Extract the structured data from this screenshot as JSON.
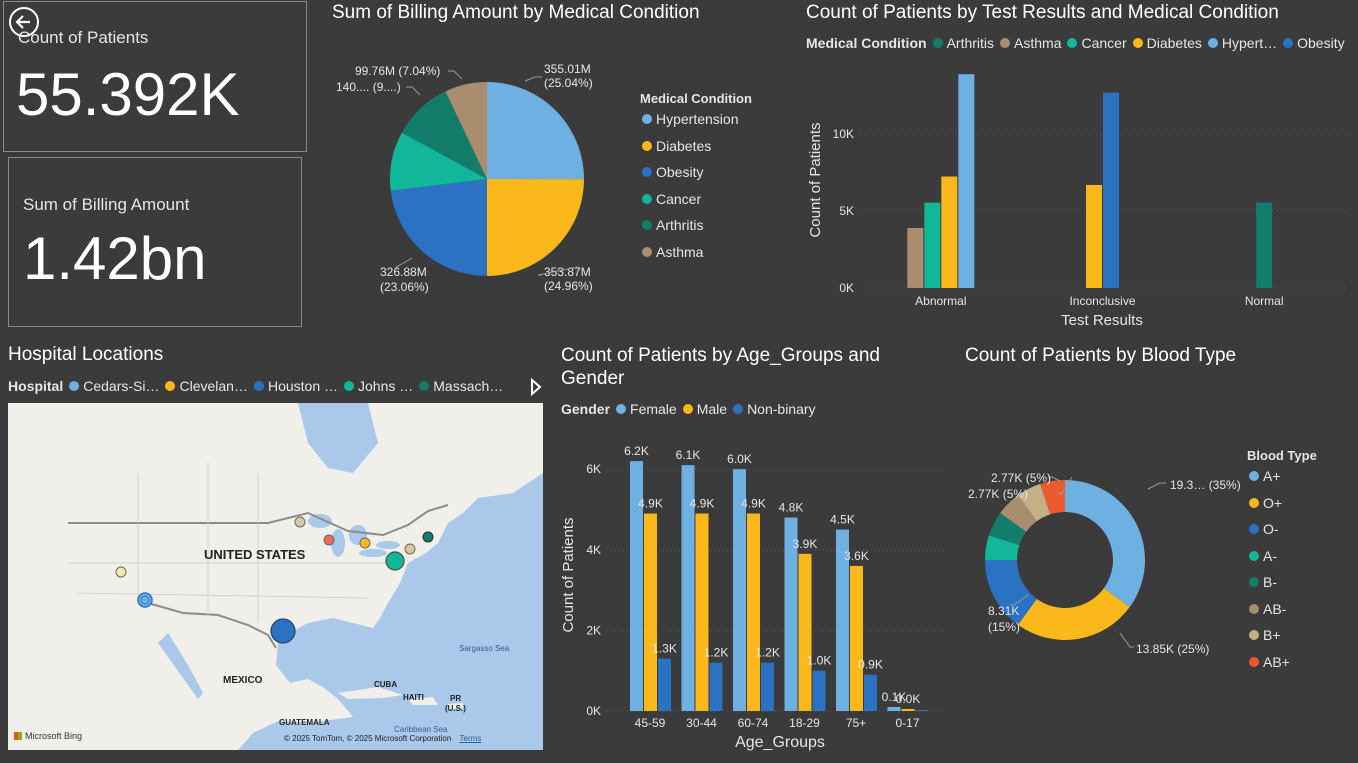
{
  "kpis": {
    "patients": {
      "label": "Count of Patients",
      "value": "55.392K"
    },
    "billing": {
      "label": "Sum of Billing Amount",
      "value": "1.42bn"
    }
  },
  "colors": {
    "hypertension": "#6fb0e3",
    "diabetes": "#fbb81b",
    "obesity": "#2b72c2",
    "cancer": "#12b79a",
    "arthritis": "#127d6a",
    "asthma": "#a98d6e",
    "ab_minus": "#a98d6e",
    "b_plus": "#c2b185",
    "ab_plus": "#e95a2c"
  },
  "billing_pie": {
    "title": "Sum of Billing Amount by Medical Condition",
    "legend_title": "Medical Condition",
    "labels": {
      "hypertension": "355.01M\n(25.04%)",
      "diabetes": "353.87M\n(24.96%)",
      "obesity": "326.88M\n(23.06%)",
      "asthma": "99.76M (7.04%)",
      "truncated": "140.... (9....)"
    }
  },
  "test_results": {
    "title": "Count of Patients by Test Results and Medical Condition",
    "legend_title": "Medical Condition",
    "legend": [
      "Arthritis",
      "Asthma",
      "Cancer",
      "Diabetes",
      "Hypert…",
      "Obesity"
    ],
    "ylabel": "Count of Patients",
    "xlabel": "Test Results"
  },
  "map": {
    "title": "Hospital Locations",
    "legend_title": "Hospital",
    "legend": [
      "Cedars-Si…",
      "Clevelan…",
      "Houston …",
      "Johns …",
      "Massach…"
    ],
    "country_label": "UNITED STATES",
    "labels": [
      "MEXICO",
      "CUBA",
      "HAITI",
      "PR\n(U.S.)",
      "GUATEMALA",
      "Sargasso Sea",
      "Caribbean Sea"
    ],
    "bing": "Microsoft Bing",
    "copyright": "© 2025 TomTom, © 2025 Microsoft Corporation",
    "terms": "Terms"
  },
  "age_gender": {
    "title_line1": "Count of Patients by Age_Groups and",
    "title_line2": "Gender",
    "legend_title": "Gender",
    "legend": [
      "Female",
      "Male",
      "Non-binary"
    ],
    "ylabel": "Count of Patients",
    "xlabel": "Age_Groups"
  },
  "blood_type": {
    "title": "Count of Patients by Blood Type",
    "legend_title": "Blood Type",
    "slice_labels": {
      "a_plus": "19.3… (35%)",
      "o_plus": "13.85K (25%)",
      "o_minus": "8.31K\n(15%)",
      "ab_minus": "2.77K (5%)",
      "b_plus": "2.77K (5%)"
    }
  },
  "chart_data": [
    {
      "type": "pie",
      "title": "Sum of Billing Amount by Medical Condition",
      "categories": [
        "Hypertension",
        "Diabetes",
        "Obesity",
        "Cancer",
        "Arthritis",
        "Asthma"
      ],
      "values": [
        355.01,
        353.87,
        326.88,
        140.0,
        142.0,
        99.76
      ],
      "unit": "M",
      "legend_position": "right"
    },
    {
      "type": "bar",
      "title": "Count of Patients by Test Results and Medical Condition",
      "categories": [
        "Abnormal",
        "Inconclusive",
        "Normal"
      ],
      "series": [
        {
          "name": "Arthritis",
          "values": [
            null,
            null,
            5550
          ]
        },
        {
          "name": "Asthma",
          "values": [
            3900,
            null,
            null
          ]
        },
        {
          "name": "Cancer",
          "values": [
            5550,
            null,
            null
          ]
        },
        {
          "name": "Diabetes",
          "values": [
            7250,
            6700,
            null
          ]
        },
        {
          "name": "Hypertension",
          "values": [
            13900,
            null,
            null
          ]
        },
        {
          "name": "Obesity",
          "values": [
            null,
            12700,
            null
          ]
        }
      ],
      "yticks": [
        "0K",
        "5K",
        "10K"
      ],
      "ylim": [
        0,
        14500
      ],
      "xlabel": "Test Results",
      "ylabel": "Count of Patients",
      "legend_position": "top"
    },
    {
      "type": "bar",
      "title": "Count of Patients by Age_Groups and Gender",
      "categories": [
        "45-59",
        "30-44",
        "60-74",
        "18-29",
        "75+",
        "0-17"
      ],
      "series": [
        {
          "name": "Female",
          "values": [
            6200,
            6100,
            6000,
            4800,
            4500,
            100
          ],
          "labels": [
            "6.2K",
            "6.1K",
            "6.0K",
            "4.8K",
            "4.5K",
            "0.1K"
          ]
        },
        {
          "name": "Male",
          "values": [
            4900,
            4900,
            4900,
            3900,
            3600,
            50
          ],
          "labels": [
            "4.9K",
            "4.9K",
            "4.9K",
            "3.9K",
            "3.6K",
            "0.0K"
          ]
        },
        {
          "name": "Non-binary",
          "values": [
            1300,
            1200,
            1200,
            1000,
            900,
            10
          ],
          "labels": [
            "1.3K",
            "1.2K",
            "1.2K",
            "1.0K",
            "0.9K",
            ""
          ]
        }
      ],
      "yticks": [
        "0K",
        "2K",
        "4K",
        "6K"
      ],
      "ylim": [
        0,
        6600
      ],
      "xlabel": "Age_Groups",
      "ylabel": "Count of Patients",
      "legend_position": "top"
    },
    {
      "type": "pie",
      "title": "Count of Patients by Blood Type",
      "categories": [
        "A+",
        "O+",
        "O-",
        "A-",
        "B-",
        "AB-",
        "B+",
        "AB+"
      ],
      "values": [
        19.39,
        13.85,
        8.31,
        2.77,
        2.77,
        2.77,
        2.77,
        2.77
      ],
      "unit": "K",
      "donut": true,
      "legend_position": "right"
    }
  ]
}
